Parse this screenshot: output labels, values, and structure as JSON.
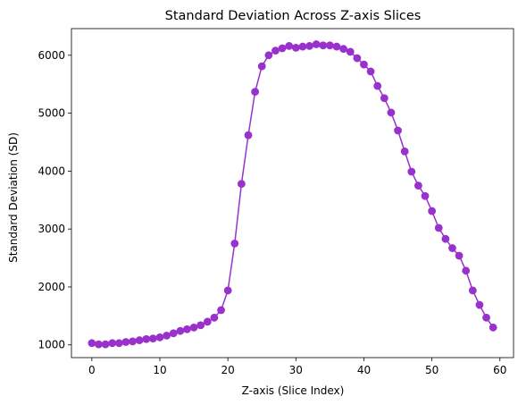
{
  "chart_data": {
    "type": "line",
    "title": "Standard Deviation Across Z-axis Slices",
    "xlabel": "Z-axis (Slice Index)",
    "ylabel": "Standard Deviation (SD)",
    "xlim": [
      -3,
      62
    ],
    "ylim": [
      780,
      6460
    ],
    "xticks": [
      0,
      10,
      20,
      30,
      40,
      50,
      60
    ],
    "yticks": [
      1000,
      2000,
      3000,
      4000,
      5000,
      6000
    ],
    "grid": false,
    "series": [
      {
        "color": "#9932CC",
        "marker": "circle",
        "x": [
          0,
          1,
          2,
          3,
          4,
          5,
          6,
          7,
          8,
          9,
          10,
          11,
          12,
          13,
          14,
          15,
          16,
          17,
          18,
          19,
          20,
          21,
          22,
          23,
          24,
          25,
          26,
          27,
          28,
          29,
          30,
          31,
          32,
          33,
          34,
          35,
          36,
          37,
          38,
          39,
          40,
          41,
          42,
          43,
          44,
          45,
          46,
          47,
          48,
          49,
          50,
          51,
          52,
          53,
          54,
          55,
          56,
          57,
          58,
          59
        ],
        "values": [
          1030,
          1010,
          1010,
          1030,
          1030,
          1050,
          1060,
          1080,
          1100,
          1110,
          1130,
          1160,
          1200,
          1240,
          1270,
          1300,
          1340,
          1400,
          1470,
          1600,
          1940,
          2750,
          3780,
          4620,
          5370,
          5810,
          6000,
          6080,
          6120,
          6160,
          6130,
          6150,
          6160,
          6190,
          6170,
          6170,
          6150,
          6110,
          6060,
          5950,
          5840,
          5720,
          5470,
          5260,
          5010,
          4700,
          4340,
          3990,
          3750,
          3570,
          3310,
          3020,
          2830,
          2670,
          2540,
          2280,
          1940,
          1690,
          1470,
          1300
        ]
      }
    ]
  }
}
